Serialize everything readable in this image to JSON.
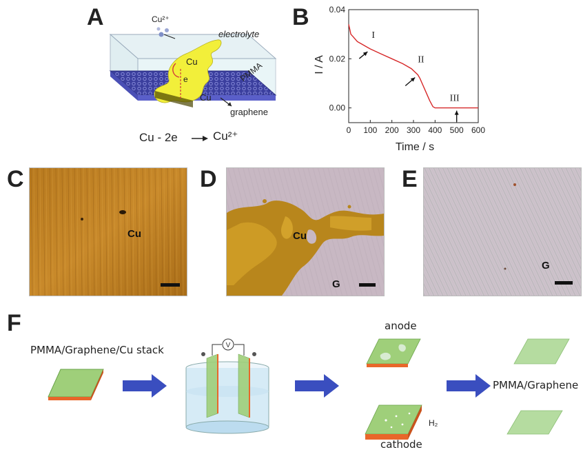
{
  "panels": {
    "a": "A",
    "b": "B",
    "c": "C",
    "d": "D",
    "e": "E",
    "f": "F"
  },
  "panel_a": {
    "ion": "Cu²⁺",
    "electrolyte": "electrolyte",
    "cu_top": "Cu",
    "electron": "e",
    "cu_bottom": "Cu",
    "pmma": "PMMA",
    "graphene": "graphene",
    "equation_left": "Cu - 2e",
    "equation_right": "Cu²⁺"
  },
  "chart_data": {
    "type": "line",
    "title": "",
    "xlabel": "Time / s",
    "ylabel": "I / A",
    "xlim": [
      0,
      600
    ],
    "ylim": [
      -0.006,
      0.04
    ],
    "xticks": [
      0,
      100,
      200,
      300,
      400,
      500,
      600
    ],
    "yticks": [
      0.0,
      0.02,
      0.04
    ],
    "ytick_labels": [
      "0.00",
      "0.02",
      "0.04"
    ],
    "grid": false,
    "series": [
      {
        "color": "#d62728",
        "x": [
          0,
          5,
          10,
          20,
          40,
          60,
          80,
          100,
          150,
          200,
          250,
          290,
          320,
          330,
          345,
          360,
          375,
          390,
          400,
          420,
          500,
          600
        ],
        "y": [
          0.034,
          0.032,
          0.03,
          0.029,
          0.027,
          0.026,
          0.025,
          0.024,
          0.022,
          0.02,
          0.018,
          0.016,
          0.0135,
          0.012,
          0.009,
          0.006,
          0.003,
          0.0005,
          0.0,
          0.0,
          0.0,
          0.0
        ]
      }
    ],
    "annotations": [
      {
        "text": "I",
        "x": 100,
        "y": 0.024
      },
      {
        "text": "II",
        "x": 320,
        "y": 0.0135
      },
      {
        "text": "III",
        "x": 500,
        "y": 0.0
      }
    ]
  },
  "micrographs": {
    "c_label": "Cu",
    "d_label_cu": "Cu",
    "d_label_g": "G",
    "e_label": "G"
  },
  "panel_f": {
    "stack_label": "PMMA/Graphene/Cu stack",
    "voltmeter": "V",
    "anode": "anode",
    "cathode": "cathode",
    "h2": "H₂",
    "result": "PMMA/Graphene"
  },
  "colors": {
    "graphene_film": "#9fcf7a",
    "copper": "#e8672a",
    "arrow_blue": "#3a4ebf",
    "curve_red": "#d62728"
  }
}
